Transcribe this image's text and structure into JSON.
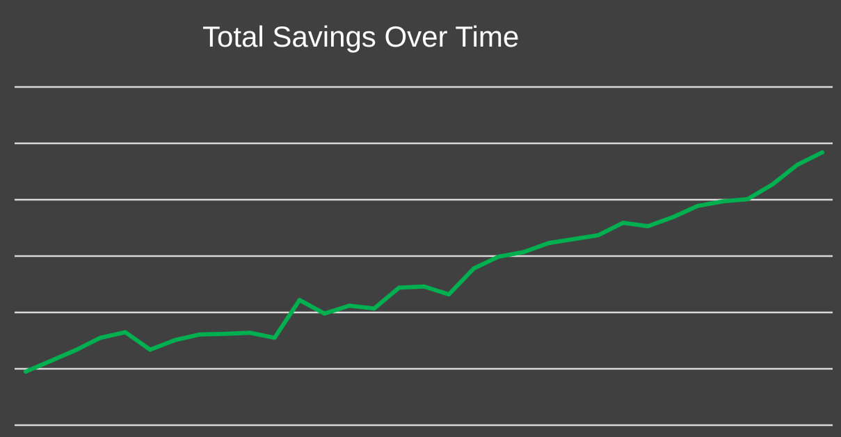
{
  "chart_data": {
    "type": "line",
    "title": "Total Savings Over Time",
    "xlabel": "",
    "ylabel": "",
    "ylim": [
      0,
      6
    ],
    "grid": true,
    "gridlines": [
      0,
      1,
      2,
      3,
      4,
      5,
      6
    ],
    "legend": "none",
    "series": [
      {
        "color": "#00b050",
        "x": [
          0,
          1,
          2,
          3,
          4,
          5,
          6,
          7,
          8,
          9,
          10,
          11,
          12,
          13,
          14,
          15,
          16,
          17,
          18,
          19,
          20,
          21,
          22,
          23,
          24,
          25,
          26,
          27,
          28,
          29,
          30,
          31,
          32
        ],
        "values": [
          0.95,
          1.14,
          1.33,
          1.55,
          1.65,
          1.34,
          1.51,
          1.61,
          1.62,
          1.64,
          1.55,
          2.22,
          1.98,
          2.12,
          2.07,
          2.44,
          2.46,
          2.32,
          2.78,
          2.99,
          3.07,
          3.23,
          3.3,
          3.37,
          3.59,
          3.53,
          3.69,
          3.89,
          3.97,
          4.01,
          4.27,
          4.62,
          4.84
        ]
      }
    ]
  },
  "colors": {
    "background": "#404040",
    "grid": "#d9d9d9",
    "title": "#ffffff",
    "line": "#00b050"
  }
}
